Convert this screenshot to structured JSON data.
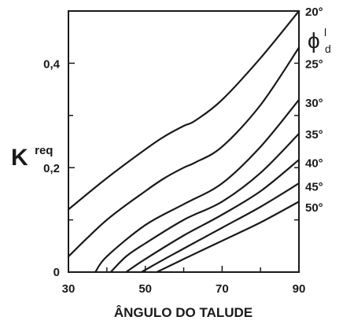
{
  "chart_data": {
    "type": "line",
    "title": "",
    "xlabel": "ÂNGULO DO TALUDE",
    "ylabel": {
      "main": "K",
      "sub": "req"
    },
    "xlim": [
      30,
      90
    ],
    "ylim": [
      0,
      0.5
    ],
    "x_ticks": [
      30,
      50,
      70,
      90
    ],
    "x_tick_labels": [
      "30",
      "50",
      "70",
      "90"
    ],
    "y_ticks": [
      0,
      0.2,
      0.4
    ],
    "y_tick_labels": [
      "0",
      "0,2",
      "0,4"
    ],
    "grid": false,
    "legend_title": {
      "symbol": "ϕ",
      "superscript": "l",
      "subscript": "d"
    },
    "series": [
      {
        "name": "20°",
        "x": [
          30,
          40,
          50,
          55,
          60,
          63,
          70,
          80,
          90
        ],
        "y": [
          0.12,
          0.18,
          0.235,
          0.26,
          0.28,
          0.29,
          0.33,
          0.41,
          0.5
        ]
      },
      {
        "name": "25°",
        "x": [
          30,
          40,
          50,
          55,
          60,
          63,
          70,
          80,
          90
        ],
        "y": [
          0.03,
          0.1,
          0.155,
          0.18,
          0.2,
          0.21,
          0.24,
          0.32,
          0.43
        ]
      },
      {
        "name": "30°",
        "x": [
          37,
          40,
          50,
          60,
          70,
          80,
          90
        ],
        "y": [
          0,
          0.03,
          0.09,
          0.13,
          0.17,
          0.24,
          0.33
        ]
      },
      {
        "name": "35°",
        "x": [
          41,
          45,
          50,
          60,
          70,
          80,
          90
        ],
        "y": [
          0,
          0.03,
          0.055,
          0.1,
          0.135,
          0.19,
          0.265
        ]
      },
      {
        "name": "40°",
        "x": [
          45,
          50,
          60,
          70,
          80,
          90
        ],
        "y": [
          0,
          0.025,
          0.07,
          0.11,
          0.155,
          0.215
        ]
      },
      {
        "name": "45°",
        "x": [
          49,
          55,
          60,
          70,
          80,
          90
        ],
        "y": [
          0,
          0.025,
          0.045,
          0.085,
          0.125,
          0.17
        ]
      },
      {
        "name": "50°",
        "x": [
          53,
          60,
          70,
          80,
          90
        ],
        "y": [
          0,
          0.025,
          0.06,
          0.095,
          0.135
        ]
      }
    ],
    "label_y_positions": [
      0.5,
      0.4,
      0.325,
      0.265,
      0.21,
      0.165,
      0.125
    ]
  }
}
